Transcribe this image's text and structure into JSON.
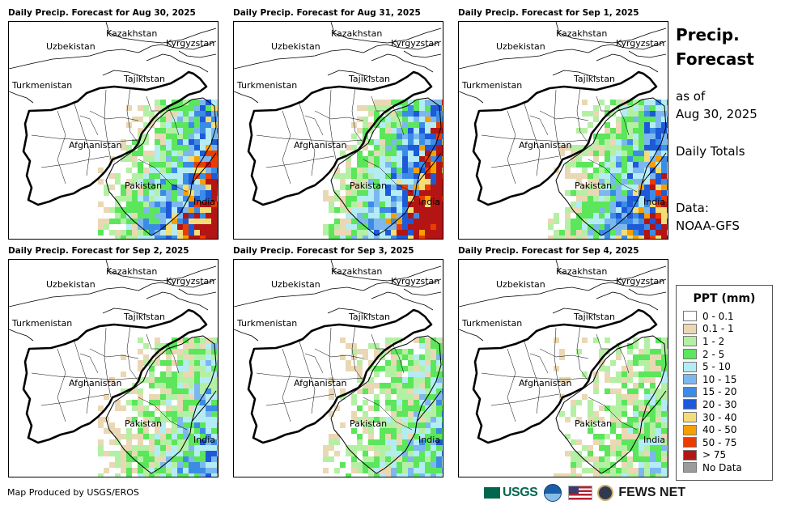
{
  "panels": [
    {
      "title": "Daily Precip. Forecast for Aug 30, 2025",
      "precip_pattern": "heavy east and southeast, 15-30 mm core over northeast Pakistan"
    },
    {
      "title": "Daily Precip. Forecast for Aug 31, 2025",
      "precip_pattern": "heavy east, 20-40 mm over northeast Pakistan and India, >75 mm pockets in south"
    },
    {
      "title": "Daily Precip. Forecast for Sep 1, 2025",
      "precip_pattern": "heavy east, 10-30 mm over northern Pakistan and India"
    },
    {
      "title": "Daily Precip. Forecast for Sep 2, 2025",
      "precip_pattern": "moderate east, mostly 1-10 mm"
    },
    {
      "title": "Daily Precip. Forecast for Sep 3, 2025",
      "precip_pattern": "moderate northeast, 1-15 mm"
    },
    {
      "title": "Daily Precip. Forecast for Sep 4, 2025",
      "precip_pattern": "light east, mostly 0.1-5 mm"
    }
  ],
  "map_labels": {
    "uzbekistan": "Uzbekistan",
    "kazakhstan": "Kazakhstan",
    "kyrgyzstan": "Kyrgyzstan",
    "tajikistan": "Tajikistan",
    "turkmenistan": "Turkmenistan",
    "afghanistan": "Afghanistan",
    "pakistan": "Pakistan",
    "india": "India"
  },
  "side": {
    "title_line1": "Precip.",
    "title_line2": "Forecast",
    "asof_line1": "as of",
    "asof_line2": "Aug 30, 2025",
    "totals": "Daily Totals",
    "data_line1": "Data:",
    "data_line2": "NOAA-GFS"
  },
  "legend": {
    "title": "PPT (mm)",
    "items": [
      {
        "label": "0 - 0.1",
        "color": "#ffffff"
      },
      {
        "label": "0.1 - 1",
        "color": "#ead8b4"
      },
      {
        "label": "1 - 2",
        "color": "#b4f0a4"
      },
      {
        "label": "2 - 5",
        "color": "#5be65b"
      },
      {
        "label": "5 - 10",
        "color": "#b4ecf4"
      },
      {
        "label": "10 - 15",
        "color": "#7cb8ef"
      },
      {
        "label": "15 - 20",
        "color": "#3c8ce6"
      },
      {
        "label": "20 - 30",
        "color": "#1c5ad8"
      },
      {
        "label": "30 - 40",
        "color": "#f4dc78"
      },
      {
        "label": "40 - 50",
        "color": "#f5a000"
      },
      {
        "label": "50 - 75",
        "color": "#eb3c00"
      },
      {
        "label": "> 75",
        "color": "#b41414"
      },
      {
        "label": "No Data",
        "color": "#9b9b9b"
      }
    ]
  },
  "footer": {
    "credit": "Map Produced by USGS/EROS",
    "usgs": "USGS",
    "fewsnet": "FEWS NET"
  }
}
